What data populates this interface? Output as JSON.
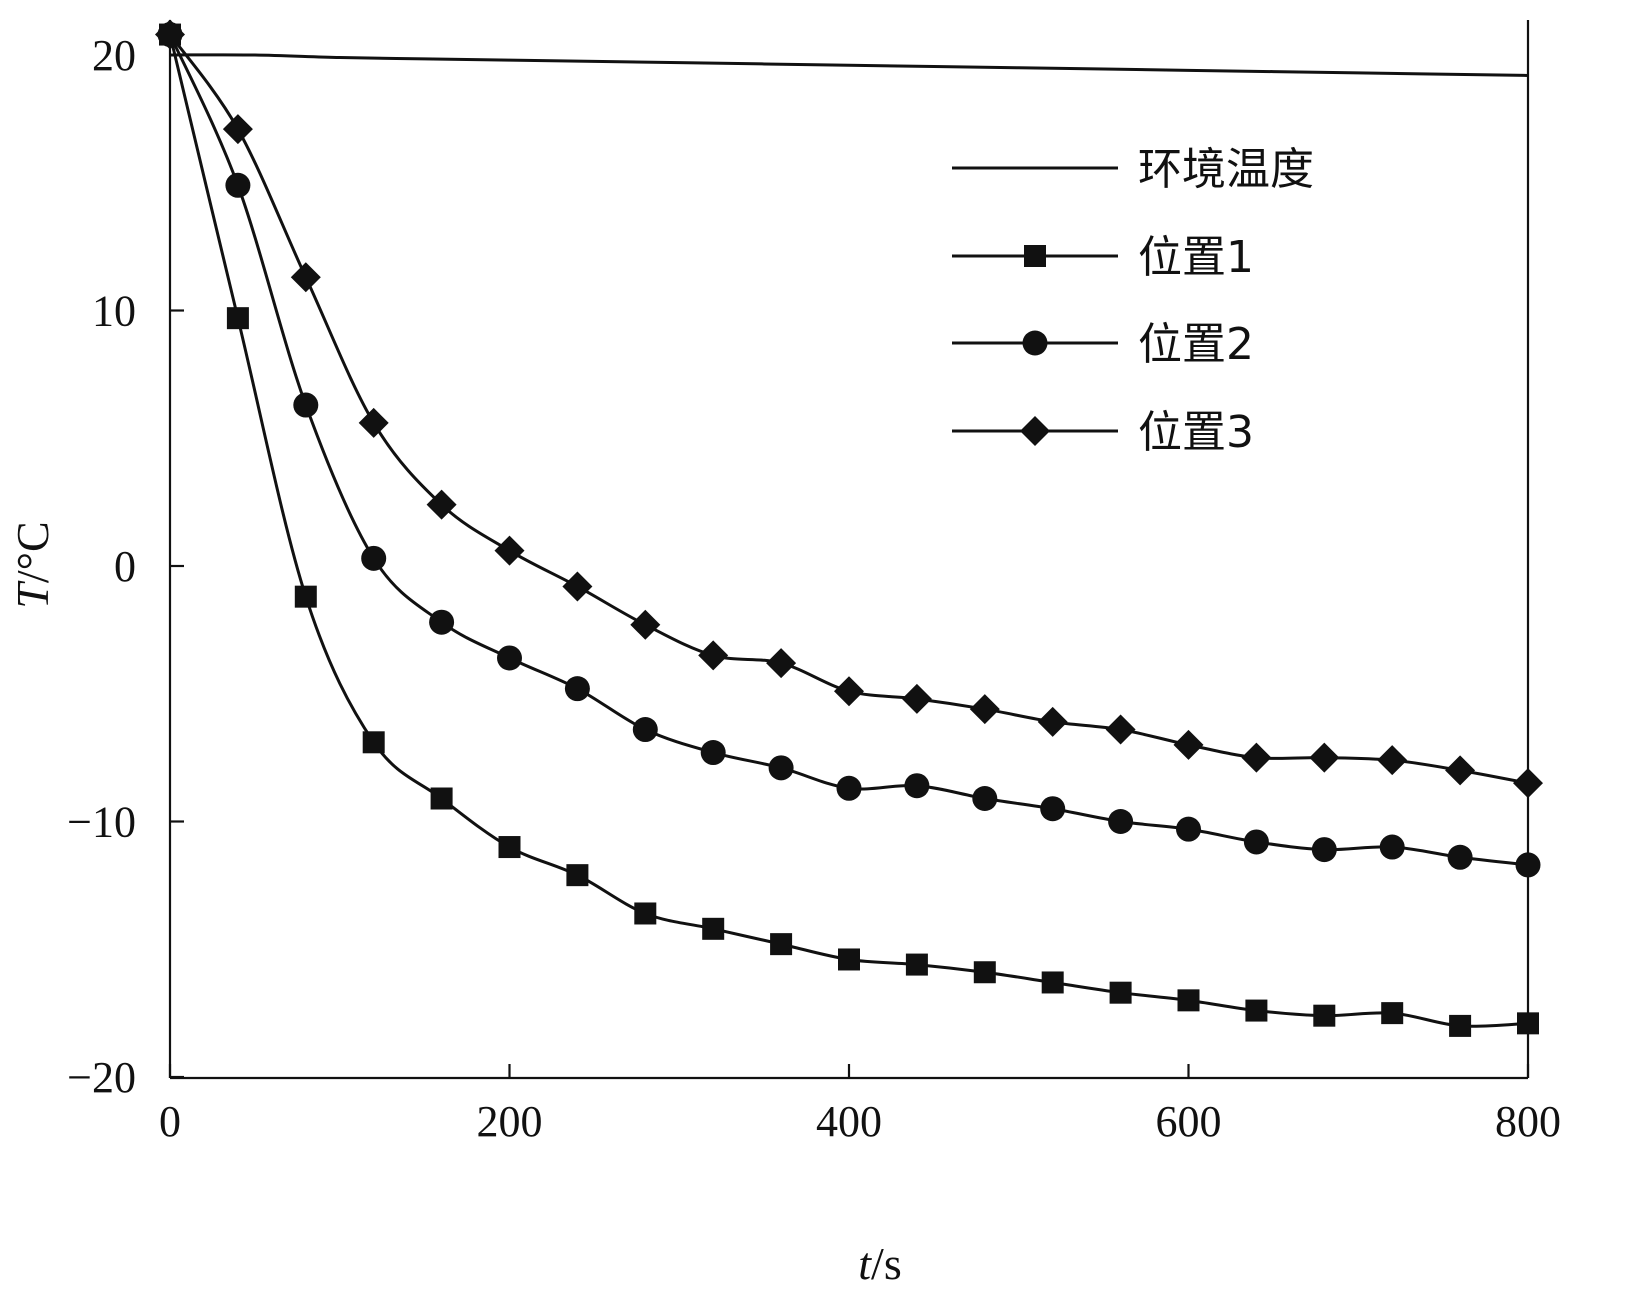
{
  "chart_data": {
    "type": "line",
    "xlabel": "t/s",
    "xlabel_italic": "t",
    "xlabel_rest": "/s",
    "ylabel": "T/°C",
    "ylabel_italic": "T",
    "ylabel_rest": "/°C",
    "xlim": [
      0,
      800
    ],
    "ylim": [
      -20,
      21
    ],
    "xticks": [
      0,
      200,
      400,
      600,
      800
    ],
    "xtick_labels": [
      "0",
      "200",
      "400",
      "600",
      "800"
    ],
    "yticks": [
      -20,
      -10,
      0,
      10,
      20
    ],
    "ytick_labels": [
      "−20",
      "−10",
      "0",
      "10",
      "20"
    ],
    "grid": false,
    "legend_position": "top-right",
    "series": [
      {
        "name": "环境温度",
        "marker": "none",
        "color": "#111111",
        "x": [
          0,
          50,
          100,
          150,
          200,
          300,
          400,
          500,
          600,
          700,
          800
        ],
        "y": [
          20.0,
          20.0,
          19.9,
          19.85,
          19.8,
          19.7,
          19.6,
          19.5,
          19.4,
          19.3,
          19.2
        ]
      },
      {
        "name": "位置1",
        "marker": "square",
        "color": "#111111",
        "x": [
          0,
          40,
          80,
          120,
          160,
          200,
          240,
          280,
          320,
          360,
          400,
          440,
          480,
          520,
          560,
          600,
          640,
          680,
          720,
          760,
          800
        ],
        "y": [
          20.8,
          9.7,
          -1.2,
          -6.9,
          -9.1,
          -11.0,
          -12.1,
          -13.6,
          -14.2,
          -14.8,
          -15.4,
          -15.6,
          -15.9,
          -16.3,
          -16.7,
          -17.0,
          -17.4,
          -17.6,
          -17.5,
          -18.0,
          -17.9
        ]
      },
      {
        "name": "位置2",
        "marker": "circle",
        "color": "#111111",
        "x": [
          0,
          40,
          80,
          120,
          160,
          200,
          240,
          280,
          320,
          360,
          400,
          440,
          480,
          520,
          560,
          600,
          640,
          680,
          720,
          760,
          800
        ],
        "y": [
          20.8,
          14.9,
          6.3,
          0.3,
          -2.2,
          -3.6,
          -4.8,
          -6.4,
          -7.3,
          -7.9,
          -8.7,
          -8.6,
          -9.1,
          -9.5,
          -10.0,
          -10.3,
          -10.8,
          -11.1,
          -11.0,
          -11.4,
          -11.7
        ]
      },
      {
        "name": "位置3",
        "marker": "diamond",
        "color": "#111111",
        "x": [
          0,
          40,
          80,
          120,
          160,
          200,
          240,
          280,
          320,
          360,
          400,
          440,
          480,
          520,
          560,
          600,
          640,
          680,
          720,
          760,
          800
        ],
        "y": [
          20.8,
          17.1,
          11.3,
          5.6,
          2.4,
          0.6,
          -0.8,
          -2.3,
          -3.5,
          -3.8,
          -4.9,
          -5.2,
          -5.6,
          -6.1,
          -6.4,
          -7.0,
          -7.5,
          -7.5,
          -7.6,
          -8.0,
          -8.5
        ]
      }
    ]
  }
}
